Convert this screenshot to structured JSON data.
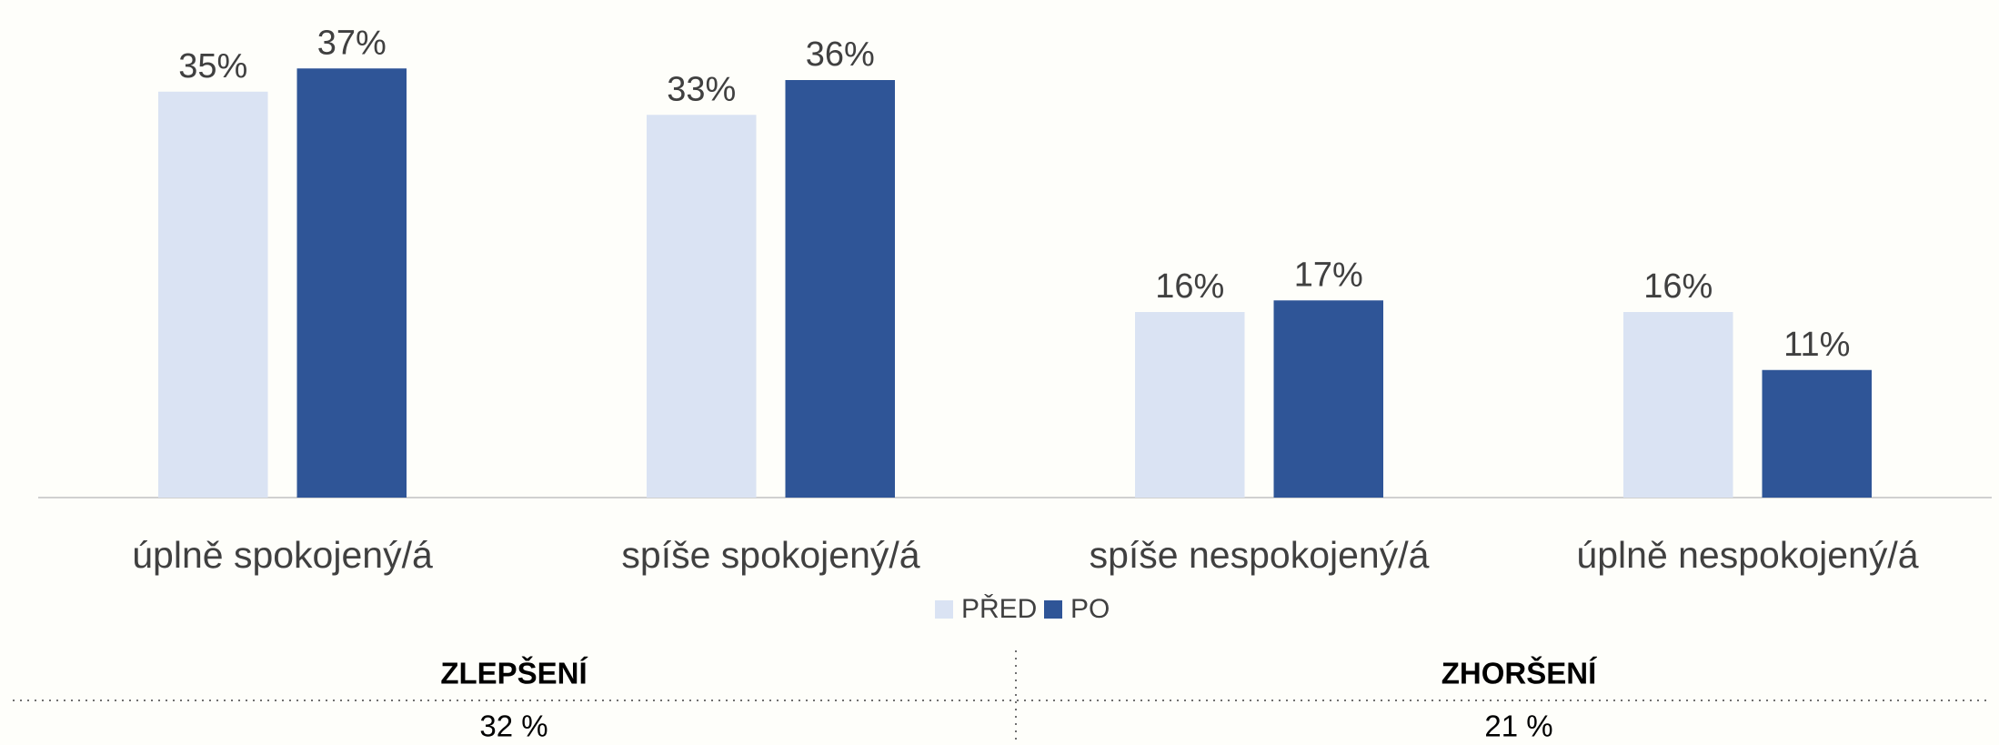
{
  "chart_data": {
    "type": "bar",
    "categories": [
      "úplně spokojený/á",
      "spíše spokojený/á",
      "spíše nespokojený/á",
      "úplně nespokojený/á"
    ],
    "series": [
      {
        "name": "PŘED",
        "color": "#dae3f3",
        "values": [
          35,
          33,
          16,
          16
        ],
        "value_labels": [
          "35%",
          "33%",
          "16%",
          "16%"
        ]
      },
      {
        "name": "PO",
        "color": "#2f5597",
        "values": [
          37,
          36,
          17,
          11
        ],
        "value_labels": [
          "37%",
          "36%",
          "17%",
          "11%"
        ]
      }
    ],
    "ylim": [
      0,
      40
    ],
    "legend": "bottom"
  },
  "summary": [
    {
      "label": "ZLEPŠENÍ",
      "value": "32 %"
    },
    {
      "label": "ZHORŠENÍ",
      "value": "21 %"
    }
  ]
}
